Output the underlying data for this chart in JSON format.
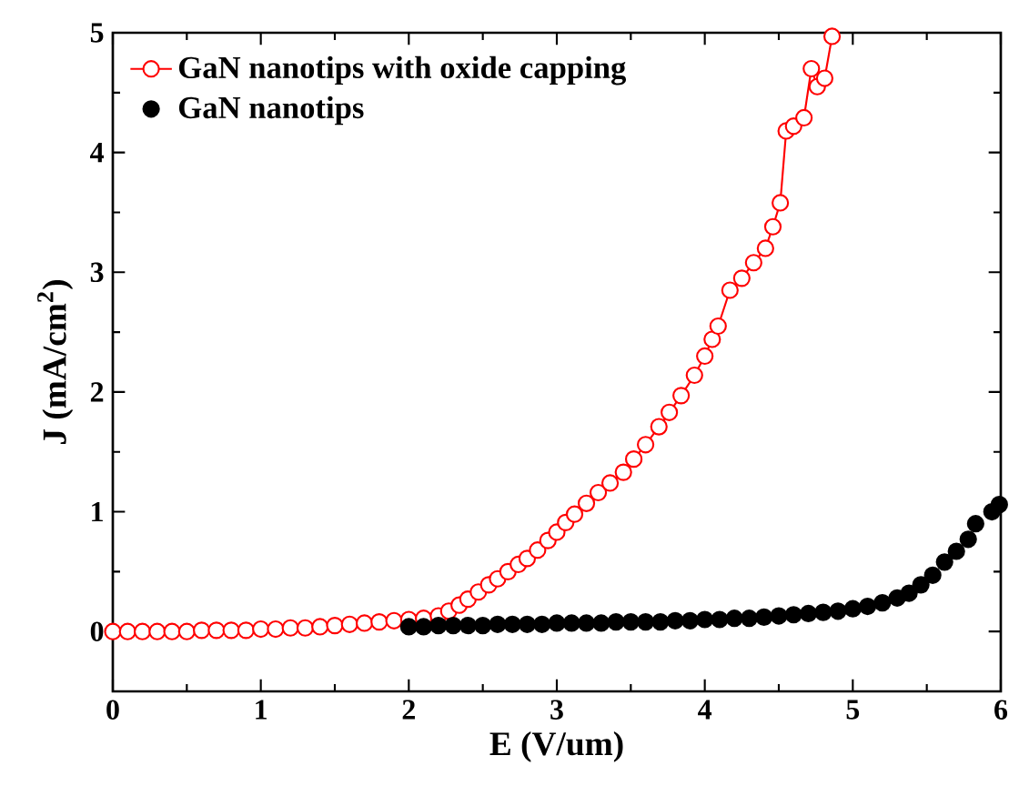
{
  "chart_data": {
    "type": "line",
    "xlabel": "E (V/um)",
    "ylabel": "J (mA/cm$^{2}$)",
    "xlim": [
      0,
      6
    ],
    "ylim": [
      -0.5,
      5
    ],
    "xticks": [
      0,
      1,
      2,
      3,
      4,
      5,
      6
    ],
    "yticks": [
      0,
      1,
      2,
      3,
      4,
      5
    ],
    "marker": "circle",
    "line_style": "solid",
    "legend": "top left",
    "grid": false,
    "series": [
      {
        "name": "GaN nanotips with oxide capping",
        "color": "#ff0000",
        "x": [
          0,
          0.1,
          0.2,
          0.3,
          0.4,
          0.5,
          0.6,
          0.7,
          0.8,
          0.9,
          1.0,
          1.1,
          1.2,
          1.3,
          1.4,
          1.5,
          1.6,
          1.7,
          1.8,
          1.9,
          2.0,
          2.1,
          2.2,
          2.27,
          2.34,
          2.4,
          2.47,
          2.54,
          2.6,
          2.67,
          2.74,
          2.8,
          2.87,
          2.94,
          3.0,
          3.06,
          3.12,
          3.2,
          3.28,
          3.36,
          3.45,
          3.52,
          3.6,
          3.69,
          3.76,
          3.84,
          3.93,
          4.0,
          4.05,
          4.09,
          4.17,
          4.25,
          4.33,
          4.41,
          4.46,
          4.51,
          4.55,
          4.6,
          4.67,
          4.72,
          4.76,
          4.81,
          4.86
        ],
        "values": [
          0,
          0,
          0,
          0,
          0,
          0,
          0.01,
          0.01,
          0.01,
          0.01,
          0.02,
          0.02,
          0.03,
          0.03,
          0.04,
          0.05,
          0.06,
          0.07,
          0.08,
          0.09,
          0.1,
          0.11,
          0.13,
          0.17,
          0.22,
          0.27,
          0.33,
          0.39,
          0.44,
          0.5,
          0.56,
          0.61,
          0.68,
          0.76,
          0.83,
          0.91,
          0.98,
          1.07,
          1.16,
          1.24,
          1.33,
          1.44,
          1.56,
          1.71,
          1.83,
          1.97,
          2.14,
          2.3,
          2.44,
          2.55,
          2.85,
          2.95,
          3.08,
          3.2,
          3.38,
          3.58,
          4.18,
          4.22,
          4.29,
          4.7,
          4.55,
          4.62,
          4.97
        ]
      },
      {
        "name": "GaN nanotips",
        "type": "scatter",
        "color": "#000000",
        "x": [
          2.0,
          2.1,
          2.2,
          2.3,
          2.4,
          2.5,
          2.6,
          2.7,
          2.8,
          2.9,
          3.0,
          3.1,
          3.2,
          3.3,
          3.4,
          3.5,
          3.6,
          3.7,
          3.8,
          3.9,
          4.0,
          4.1,
          4.2,
          4.3,
          4.4,
          4.5,
          4.6,
          4.7,
          4.8,
          4.9,
          5.0,
          5.1,
          5.2,
          5.3,
          5.38,
          5.46,
          5.54,
          5.62,
          5.7,
          5.78,
          5.83,
          5.94,
          5.99
        ],
        "values": [
          0.04,
          0.04,
          0.05,
          0.05,
          0.05,
          0.05,
          0.06,
          0.06,
          0.06,
          0.06,
          0.07,
          0.07,
          0.07,
          0.07,
          0.08,
          0.08,
          0.08,
          0.08,
          0.09,
          0.09,
          0.1,
          0.1,
          0.11,
          0.11,
          0.12,
          0.13,
          0.14,
          0.15,
          0.16,
          0.17,
          0.19,
          0.21,
          0.24,
          0.28,
          0.32,
          0.39,
          0.47,
          0.58,
          0.67,
          0.77,
          0.9,
          1.0,
          1.06
        ]
      }
    ]
  }
}
